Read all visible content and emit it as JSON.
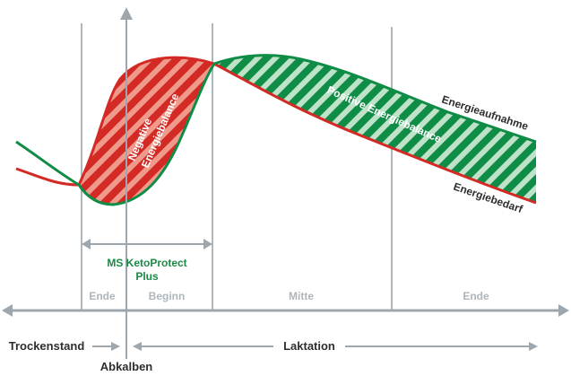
{
  "colors": {
    "red": "#d42a25",
    "red_light": "#ef9a8a",
    "green": "#0f8c46",
    "green_light": "#bfe3c9",
    "grid": "#aeb6bc",
    "axis": "#9ea7ad",
    "text": "#2e2e2e",
    "label_green": "#1a8a44"
  },
  "labels": {
    "negative_balance_line1": "Negative",
    "negative_balance_line2": "Energiebalance",
    "positive_balance": "Positive Energiebalance",
    "intake": "Energieaufnahme",
    "demand": "Energiebedarf",
    "product_line1": "MS KetoProtect",
    "product_line2": "Plus"
  },
  "phases": {
    "ende_1": "Ende",
    "beginn": "Beginn",
    "mitte": "Mitte",
    "ende_2": "Ende"
  },
  "timeline": {
    "trockenstand": "Trockenstand",
    "laktation": "Laktation",
    "abkalben": "Abkalben"
  }
}
